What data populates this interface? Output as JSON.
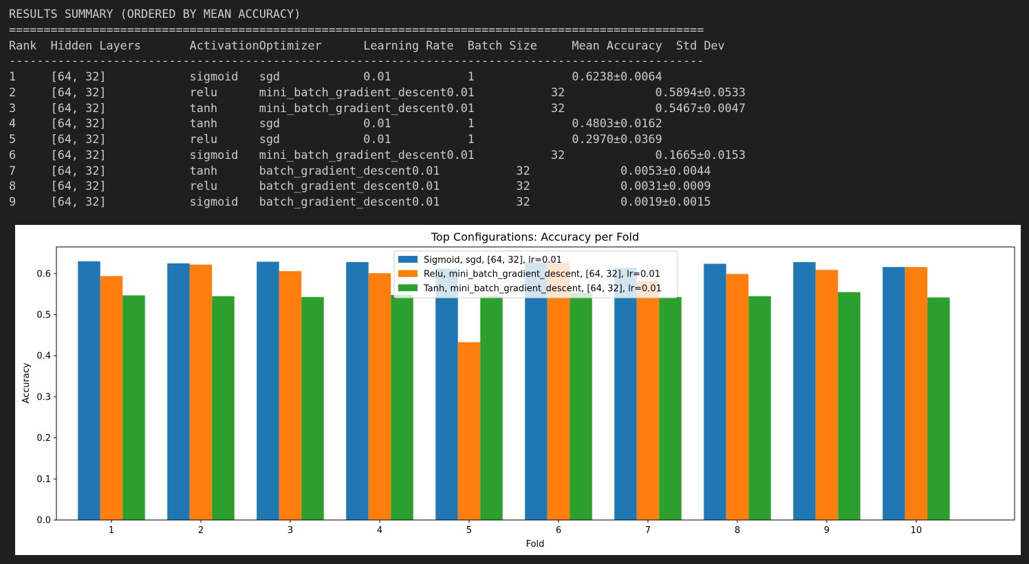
{
  "console": {
    "lines": [
      "RESULTS SUMMARY (ORDERED BY MEAN ACCURACY)",
      "====================================================================================================",
      "Rank  Hidden Layers       ActivationOptimizer      Learning Rate  Batch Size     Mean Accuracy  Std Dev",
      "----------------------------------------------------------------------------------------------------",
      "1     [64, 32]            sigmoid   sgd            0.01           1              0.6238±0.0064",
      "2     [64, 32]            relu      mini_batch_gradient_descent0.01           32             0.5894±0.0533",
      "3     [64, 32]            tanh      mini_batch_gradient_descent0.01           32             0.5467±0.0047",
      "4     [64, 32]            tanh      sgd            0.01           1              0.4803±0.0162",
      "5     [64, 32]            relu      sgd            0.01           1              0.2970±0.0369",
      "6     [64, 32]            sigmoid   mini_batch_gradient_descent0.01           32             0.1665±0.0153",
      "7     [64, 32]            tanh      batch_gradient_descent0.01           32             0.0053±0.0044",
      "8     [64, 32]            relu      batch_gradient_descent0.01           32             0.0031±0.0009",
      "9     [64, 32]            sigmoid   batch_gradient_descent0.01           32             0.0019±0.0015"
    ]
  },
  "chart_data": {
    "type": "bar",
    "title": "Top Configurations: Accuracy per Fold",
    "xlabel": "Fold",
    "ylabel": "Accuracy",
    "categories": [
      "1",
      "2",
      "3",
      "4",
      "5",
      "6",
      "7",
      "8",
      "9",
      "10"
    ],
    "ylim": [
      0,
      0.665
    ],
    "yticks": [
      "0.0",
      "0.1",
      "0.2",
      "0.3",
      "0.4",
      "0.5",
      "0.6"
    ],
    "legend_position": "top-center",
    "grid": false,
    "series": [
      {
        "name": "Sigmoid, sgd, [64, 32], lr=0.01",
        "color": "#1f77b4",
        "values": [
          0.63,
          0.625,
          0.629,
          0.628,
          0.612,
          0.627,
          0.614,
          0.624,
          0.628,
          0.616
        ]
      },
      {
        "name": "Relu, mini_batch_gradient_descent, [64, 32], lr=0.01",
        "color": "#ff7f0e",
        "values": [
          0.594,
          0.622,
          0.606,
          0.601,
          0.433,
          0.626,
          0.582,
          0.599,
          0.609,
          0.616
        ]
      },
      {
        "name": "Tanh, mini_batch_gradient_descent, [64, 32], lr=0.01",
        "color": "#2ca02c",
        "values": [
          0.547,
          0.545,
          0.543,
          0.548,
          0.545,
          0.553,
          0.543,
          0.545,
          0.555,
          0.542
        ]
      }
    ]
  }
}
